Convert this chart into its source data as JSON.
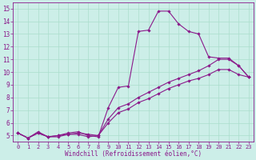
{
  "xlabel": "Windchill (Refroidissement éolien,°C)",
  "bg_color": "#cceee8",
  "grid_color": "#aaddcc",
  "line_color": "#8b1a8b",
  "xlim": [
    -0.5,
    23.5
  ],
  "ylim": [
    4.5,
    15.5
  ],
  "xticks": [
    0,
    1,
    2,
    3,
    4,
    5,
    6,
    7,
    8,
    9,
    10,
    11,
    12,
    13,
    14,
    15,
    16,
    17,
    18,
    19,
    20,
    21,
    22,
    23
  ],
  "yticks": [
    5,
    6,
    7,
    8,
    9,
    10,
    11,
    12,
    13,
    14,
    15
  ],
  "series1_x": [
    0,
    1,
    2,
    3,
    4,
    5,
    6,
    7,
    8,
    9,
    10,
    11,
    12,
    13,
    14,
    15,
    16,
    17,
    18,
    19,
    20,
    21,
    22,
    23
  ],
  "series1_y": [
    5.2,
    4.8,
    5.3,
    4.9,
    5.0,
    5.2,
    5.3,
    5.0,
    4.9,
    7.2,
    8.8,
    8.9,
    13.2,
    13.3,
    14.8,
    14.8,
    13.8,
    13.2,
    13.0,
    11.2,
    11.1,
    11.1,
    10.5,
    9.6
  ],
  "series2_x": [
    0,
    1,
    2,
    3,
    4,
    5,
    6,
    7,
    8,
    9,
    10,
    11,
    12,
    13,
    14,
    15,
    16,
    17,
    18,
    19,
    20,
    21,
    22,
    23
  ],
  "series2_y": [
    5.2,
    4.8,
    5.2,
    4.9,
    5.0,
    5.1,
    5.2,
    5.1,
    5.0,
    6.3,
    7.2,
    7.5,
    8.0,
    8.4,
    8.8,
    9.2,
    9.5,
    9.8,
    10.1,
    10.5,
    11.0,
    11.0,
    10.5,
    9.6
  ],
  "series3_x": [
    0,
    1,
    2,
    3,
    4,
    5,
    6,
    7,
    8,
    9,
    10,
    11,
    12,
    13,
    14,
    15,
    16,
    17,
    18,
    19,
    20,
    21,
    22,
    23
  ],
  "series3_y": [
    5.2,
    4.8,
    5.2,
    4.9,
    4.9,
    5.1,
    5.1,
    4.9,
    5.0,
    6.0,
    6.8,
    7.1,
    7.6,
    7.9,
    8.3,
    8.7,
    9.0,
    9.3,
    9.5,
    9.8,
    10.2,
    10.2,
    9.8,
    9.6
  ],
  "xlabel_fontsize": 5.5,
  "tick_fontsize": 5.0,
  "ytick_fontsize": 5.5,
  "marker_size": 1.8,
  "line_width": 0.8
}
